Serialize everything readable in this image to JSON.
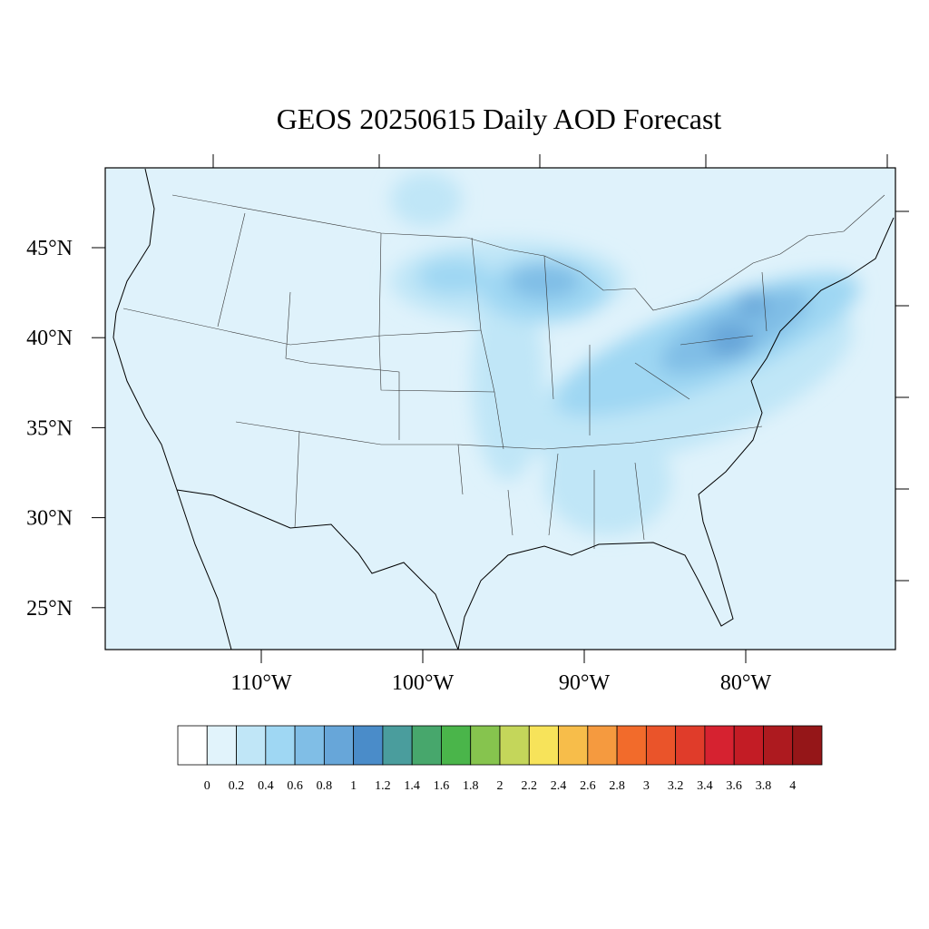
{
  "title": "GEOS 20250615 Daily AOD Forecast",
  "lat_labels": [
    "45°N",
    "40°N",
    "35°N",
    "30°N",
    "25°N"
  ],
  "lon_labels": [
    "110°W",
    "100°W",
    "90°W",
    "80°W"
  ],
  "colorbar": {
    "labels": [
      "0",
      "0.2",
      "0.4",
      "0.6",
      "0.8",
      "1",
      "1.2",
      "1.4",
      "1.6",
      "1.8",
      "2",
      "2.2",
      "2.4",
      "2.6",
      "2.8",
      "3",
      "3.2",
      "3.4",
      "3.6",
      "3.8",
      "4"
    ],
    "colors": [
      "#ffffff",
      "#e1f3fb",
      "#c0e6f7",
      "#9fd7f3",
      "#80bee6",
      "#67a6d9",
      "#4a8cc9",
      "#4a9d9d",
      "#47a76c",
      "#4ab54a",
      "#86c44e",
      "#c4d65a",
      "#f7e35a",
      "#f7bd4a",
      "#f59a3f",
      "#f26b2b",
      "#ea542a",
      "#e03c2a",
      "#d62230",
      "#c31c25",
      "#ad1a1f",
      "#951618"
    ]
  }
}
